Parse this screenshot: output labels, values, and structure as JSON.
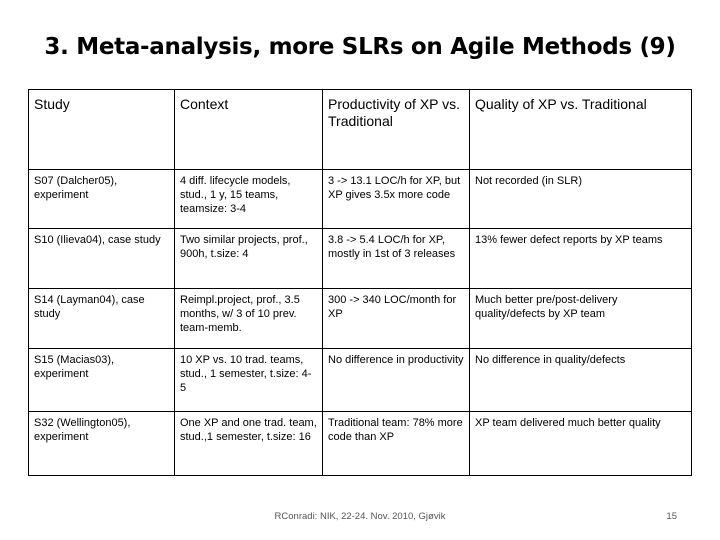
{
  "slide": {
    "title": "3. Meta-analysis, more SLRs on Agile Methods (9)",
    "footer": "RConradi: NIK, 22-24. Nov. 2010, Gjøvik",
    "page_number": "15"
  },
  "table": {
    "headers": [
      "Study",
      "Context",
      "Productivity of XP vs. Traditional",
      "Quality of XP vs. Traditional"
    ],
    "rows": [
      [
        "S07 (Dalcher05), experiment",
        "4 diff. lifecycle models, stud., 1 y, 15 teams, teamsize: 3-4",
        "3 -> 13.1 LOC/h for XP, but XP gives 3.5x more code",
        "Not recorded (in SLR)"
      ],
      [
        "S10 (Ilieva04), case study",
        "Two similar projects, prof., 900h, t.size: 4",
        "3.8 -> 5.4 LOC/h for XP, mostly in 1st of 3 releases",
        "13% fewer defect reports by XP teams"
      ],
      [
        "S14 (Layman04), case study",
        "Reimpl.project, prof., 3.5 months, w/ 3 of 10 prev. team-memb.",
        "300 -> 340 LOC/month for XP",
        "Much better pre/post-delivery quality/defects by XP team"
      ],
      [
        "S15 (Macias03), experiment",
        "10 XP vs. 10 trad. teams, stud., 1 semester, t.size: 4-5",
        "No difference in productivity",
        "No difference in quality/defects"
      ],
      [
        "S32 (Wellington05), experiment",
        "One XP and one trad. team, stud.,1 semester, t.size: 16",
        "Traditional team: 78% more code than XP",
        "XP team delivered much better quality"
      ]
    ]
  }
}
